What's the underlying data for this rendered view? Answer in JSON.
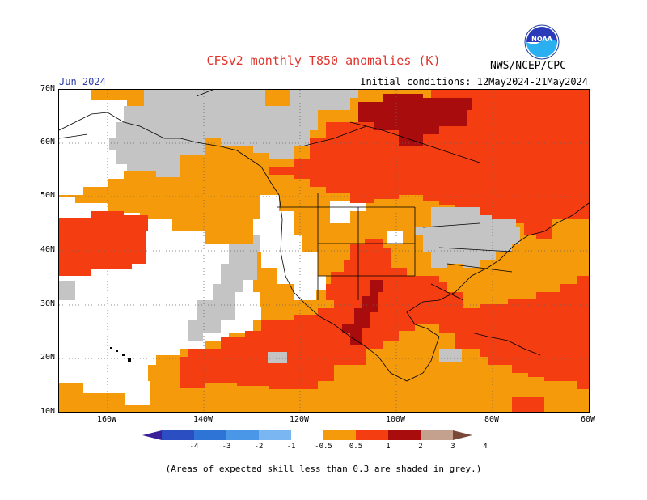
{
  "header": {
    "title": "CFSv2 monthly T850 anomalies (K)",
    "valid_month": "Jun 2024",
    "initial_conditions": "Initial conditions: 12May2024-21May2024",
    "agency": "NWS/NCEP/CPC",
    "logo_text": "NOAA"
  },
  "map": {
    "region": "North America & NE Pacific",
    "lat_range": [
      10,
      70
    ],
    "lon_range": [
      -170,
      -60
    ],
    "lat_labels": [
      "70N",
      "60N",
      "50N",
      "40N",
      "30N",
      "20N",
      "10N"
    ],
    "lon_labels": [
      "160W",
      "140W",
      "120W",
      "100W",
      "80W",
      "60W"
    ]
  },
  "legend": {
    "labels": [
      "-4",
      "-3",
      "-2",
      "-1",
      "-0.5",
      "0.5",
      "1",
      "2",
      "3",
      "4"
    ],
    "colors": [
      "#3b1f99",
      "#2b4fc2",
      "#2e74d6",
      "#4a97e8",
      "#7ab6f2",
      "#ffffff",
      "#f59a0a",
      "#f53d12",
      "#a80c0c",
      "#c4a08e",
      "#7a4838"
    ]
  },
  "note": "(Areas of expected skill less than 0.3 are shaded in grey.)",
  "colors": {
    "grey_low_skill": "#c4c4c4",
    "orange": "#f59a0a",
    "red": "#f53d12",
    "dark_red": "#a80c0c"
  }
}
